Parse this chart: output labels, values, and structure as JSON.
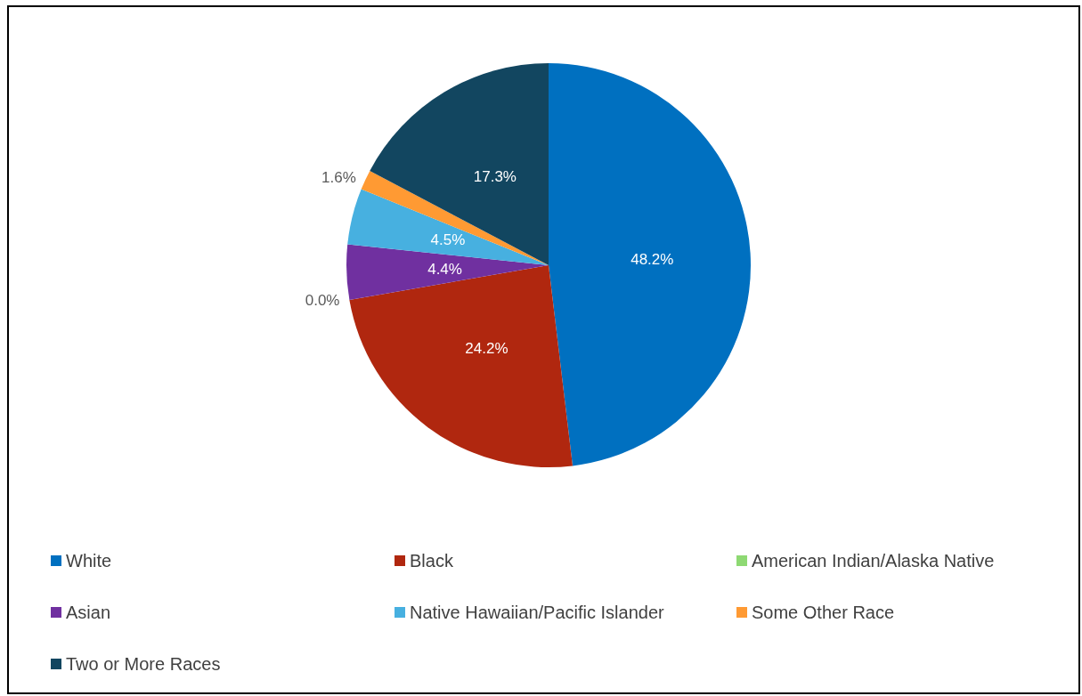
{
  "chart_data": {
    "type": "pie",
    "categories": [
      "White",
      "Black",
      "American Indian/Alaska Native",
      "Asian",
      "Native Hawaiian/Pacific Islander",
      "Some Other Race",
      "Two or More Races"
    ],
    "values": [
      48.2,
      24.2,
      0.0,
      4.4,
      4.5,
      1.6,
      17.3
    ],
    "value_labels": [
      "48.2%",
      "24.2%",
      "0.0%",
      "4.4%",
      "4.5%",
      "1.6%",
      "17.3%"
    ],
    "colors": [
      "#0070c0",
      "#b0270f",
      "#8ed973",
      "#7030a0",
      "#47b0e0",
      "#ff9a33",
      "#124660"
    ],
    "legend": "bottom"
  }
}
